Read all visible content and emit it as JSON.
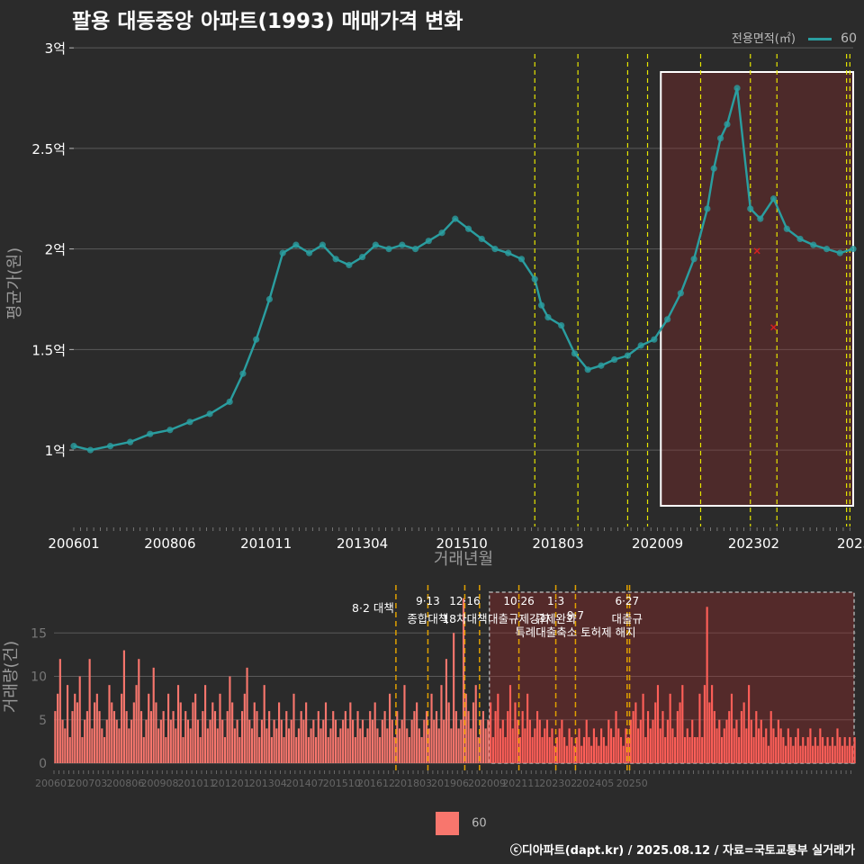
{
  "title": "팔용 대동중앙 아파트(1993) 매매가격 변화",
  "legend": {
    "title": "전용면적(㎡)",
    "item": "60",
    "line_color": "#2a9ea0",
    "bar_color": "#f8766d"
  },
  "caption": "ⓒ디아파트(dapt.kr) / 2025.08.12 / 자료=국토교통부 실거래가",
  "chart_data": [
    {
      "type": "line",
      "xlabel": "거래년월",
      "ylabel": "평균가(원)",
      "x_range": [
        "2006-01",
        "2025-08"
      ],
      "ylim": [
        0.62,
        3.05
      ],
      "yticks": [
        1,
        1.5,
        2,
        2.5,
        3
      ],
      "ytick_labels": [
        "1억",
        "1.5억",
        "2억",
        "2.5억",
        "3억"
      ],
      "xtick_labels": [
        "200601",
        "200806",
        "201011",
        "201304",
        "201510",
        "201803",
        "202009",
        "202302",
        "2025"
      ],
      "xtick_dates": [
        "2006-01",
        "2008-06",
        "2010-11",
        "2013-04",
        "2015-10",
        "2018-03",
        "2020-09",
        "2023-02",
        "2025-08"
      ],
      "grid": true,
      "series": [
        {
          "name": "60",
          "color": "#2a9ea0",
          "points": [
            [
              "2006-01",
              1.02
            ],
            [
              "2006-06",
              1.0
            ],
            [
              "2006-12",
              1.02
            ],
            [
              "2007-06",
              1.04
            ],
            [
              "2007-12",
              1.08
            ],
            [
              "2008-06",
              1.1
            ],
            [
              "2008-12",
              1.14
            ],
            [
              "2009-06",
              1.18
            ],
            [
              "2009-12",
              1.24
            ],
            [
              "2010-04",
              1.38
            ],
            [
              "2010-08",
              1.55
            ],
            [
              "2010-12",
              1.75
            ],
            [
              "2011-04",
              1.98
            ],
            [
              "2011-08",
              2.02
            ],
            [
              "2011-12",
              1.98
            ],
            [
              "2012-04",
              2.02
            ],
            [
              "2012-08",
              1.95
            ],
            [
              "2012-12",
              1.92
            ],
            [
              "2013-04",
              1.96
            ],
            [
              "2013-08",
              2.02
            ],
            [
              "2013-12",
              2.0
            ],
            [
              "2014-04",
              2.02
            ],
            [
              "2014-08",
              2.0
            ],
            [
              "2014-12",
              2.04
            ],
            [
              "2015-04",
              2.08
            ],
            [
              "2015-08",
              2.15
            ],
            [
              "2015-12",
              2.1
            ],
            [
              "2016-04",
              2.05
            ],
            [
              "2016-08",
              2.0
            ],
            [
              "2016-12",
              1.98
            ],
            [
              "2017-04",
              1.95
            ],
            [
              "2017-08",
              1.85
            ],
            [
              "2017-10",
              1.72
            ],
            [
              "2017-12",
              1.66
            ],
            [
              "2018-04",
              1.62
            ],
            [
              "2018-08",
              1.48
            ],
            [
              "2018-12",
              1.4
            ],
            [
              "2019-04",
              1.42
            ],
            [
              "2019-08",
              1.45
            ],
            [
              "2019-12",
              1.47
            ],
            [
              "2020-04",
              1.52
            ],
            [
              "2020-08",
              1.55
            ],
            [
              "2020-12",
              1.65
            ],
            [
              "2021-04",
              1.78
            ],
            [
              "2021-08",
              1.95
            ],
            [
              "2021-12",
              2.2
            ],
            [
              "2022-02",
              2.4
            ],
            [
              "2022-04",
              2.55
            ],
            [
              "2022-06",
              2.62
            ],
            [
              "2022-09",
              2.8
            ],
            [
              "2023-01",
              2.2
            ],
            [
              "2023-04",
              2.15
            ],
            [
              "2023-08",
              2.25
            ],
            [
              "2023-12",
              2.1
            ],
            [
              "2024-04",
              2.05
            ],
            [
              "2024-08",
              2.02
            ],
            [
              "2024-12",
              2.0
            ],
            [
              "2025-04",
              1.98
            ],
            [
              "2025-08",
              2.0
            ]
          ]
        }
      ],
      "outliers": [
        [
          "2023-03",
          1.99
        ],
        [
          "2023-08",
          1.61
        ]
      ],
      "highlight_range": [
        "2020-10",
        "2025-08"
      ]
    },
    {
      "type": "bar",
      "ylabel": "거래량(건)",
      "ylim": [
        0,
        20
      ],
      "yticks": [
        0,
        5,
        10,
        15
      ],
      "ytick_labels": [
        "0",
        "5",
        "10",
        "15"
      ],
      "xtick_labels": [
        "200601",
        "200703",
        "200806",
        "200908",
        "201011",
        "201201",
        "201304",
        "201407",
        "201510",
        "201612",
        "201803",
        "201906",
        "202009",
        "202111",
        "202302",
        "202405",
        "20250"
      ],
      "xtick_dates": [
        "2006-01",
        "2007-03",
        "2008-06",
        "2009-08",
        "2010-11",
        "2012-01",
        "2013-04",
        "2014-07",
        "2015-10",
        "2016-12",
        "2018-03",
        "2019-06",
        "2020-09",
        "2021-11",
        "2023-02",
        "2024-05",
        "2025-08"
      ],
      "series": [
        {
          "name": "60",
          "color": "#f8766d",
          "values": [
            6,
            8,
            12,
            5,
            4,
            9,
            3,
            6,
            8,
            7,
            10,
            3,
            5,
            6,
            12,
            4,
            7,
            8,
            6,
            4,
            3,
            5,
            9,
            7,
            6,
            5,
            4,
            8,
            13,
            6,
            4,
            5,
            7,
            9,
            12,
            6,
            3,
            5,
            8,
            6,
            11,
            7,
            4,
            5,
            6,
            3,
            8,
            5,
            6,
            4,
            9,
            7,
            3,
            6,
            5,
            4,
            7,
            8,
            5,
            3,
            6,
            9,
            4,
            5,
            7,
            6,
            4,
            8,
            5,
            3,
            6,
            10,
            7,
            4,
            5,
            3,
            6,
            8,
            11,
            5,
            4,
            7,
            6,
            3,
            5,
            9,
            4,
            6,
            3,
            5,
            4,
            7,
            5,
            3,
            6,
            4,
            5,
            8,
            3,
            4,
            6,
            5,
            7,
            3,
            4,
            5,
            3,
            6,
            4,
            5,
            7,
            3,
            4,
            6,
            5,
            3,
            4,
            5,
            6,
            4,
            7,
            5,
            3,
            6,
            4,
            5,
            3,
            4,
            6,
            5,
            7,
            4,
            3,
            5,
            6,
            4,
            8,
            5,
            3,
            6,
            4,
            5,
            9,
            4,
            3,
            5,
            6,
            7,
            4,
            3,
            5,
            6,
            4,
            8,
            5,
            6,
            4,
            9,
            5,
            12,
            7,
            4,
            15,
            6,
            4,
            5,
            19,
            8,
            6,
            4,
            7,
            9,
            3,
            5,
            6,
            4,
            5,
            7,
            3,
            6,
            8,
            4,
            5,
            3,
            6,
            9,
            4,
            7,
            5,
            3,
            6,
            4,
            8,
            5,
            3,
            4,
            6,
            5,
            3,
            4,
            5,
            3,
            4,
            2,
            3,
            4,
            5,
            3,
            2,
            4,
            3,
            2,
            3,
            4,
            2,
            3,
            5,
            3,
            2,
            4,
            3,
            2,
            4,
            3,
            2,
            5,
            4,
            3,
            6,
            4,
            3,
            2,
            4,
            3,
            5,
            6,
            7,
            4,
            5,
            8,
            3,
            6,
            4,
            5,
            7,
            9,
            4,
            6,
            3,
            5,
            8,
            4,
            3,
            6,
            7,
            9,
            3,
            4,
            3,
            5,
            3,
            3,
            8,
            3,
            9,
            18,
            7,
            9,
            6,
            4,
            5,
            3,
            4,
            5,
            6,
            8,
            4,
            5,
            3,
            6,
            7,
            4,
            9,
            5,
            3,
            6,
            4,
            5,
            3,
            4,
            2,
            6,
            4,
            3,
            5,
            4,
            3,
            2,
            4,
            3,
            2,
            3,
            4,
            2,
            3,
            2,
            3,
            4,
            2,
            3,
            2,
            4,
            3,
            2,
            3,
            2,
            3,
            2,
            4,
            3,
            2,
            3,
            2,
            3,
            2,
            3
          ]
        }
      ],
      "highlight_range": [
        "2020-10",
        "2025-08"
      ]
    }
  ],
  "policy_lines": [
    {
      "date": "2017-08",
      "labels": [
        "8·2 대책"
      ]
    },
    {
      "date": "2018-09",
      "labels": [
        "9·13",
        "종합대책"
      ]
    },
    {
      "date": "2019-12",
      "labels": [
        "12·16",
        "18차대책"
      ]
    },
    {
      "date": "2020-06",
      "labels": [
        ""
      ]
    },
    {
      "date": "2021-10",
      "labels": [
        "10·26",
        "대출규제강화"
      ]
    },
    {
      "date": "2023-01",
      "labels": [
        "1·3",
        "규제완화"
      ]
    },
    {
      "date": "2023-09",
      "labels": [
        "9·7",
        "특례대출축소 토허제 해지"
      ]
    },
    {
      "date": "2025-06",
      "labels": [
        "6·27",
        "대출규"
      ]
    },
    {
      "date": "2025-07",
      "labels": [
        ""
      ]
    }
  ]
}
